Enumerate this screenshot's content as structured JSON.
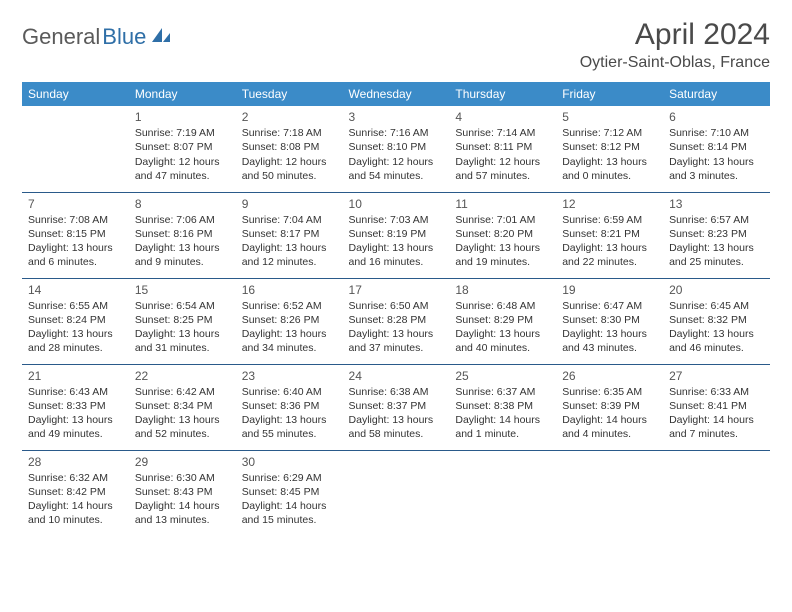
{
  "logo": {
    "text_gray": "General",
    "text_blue": "Blue"
  },
  "header": {
    "month_title": "April 2024",
    "location": "Oytier-Saint-Oblas, France"
  },
  "colors": {
    "header_bg": "#3b8bc8",
    "header_text": "#ffffff",
    "row_divider": "#2a5a8a",
    "body_text": "#333333",
    "title_text": "#4a4a4a",
    "logo_gray": "#5a5a5a",
    "logo_blue": "#2f6fa7",
    "background": "#ffffff"
  },
  "typography": {
    "month_title_fontsize": 30,
    "location_fontsize": 16,
    "weekday_fontsize": 12,
    "daynum_fontsize": 12,
    "cell_fontsize": 10.5
  },
  "weekdays": [
    "Sunday",
    "Monday",
    "Tuesday",
    "Wednesday",
    "Thursday",
    "Friday",
    "Saturday"
  ],
  "weeks": [
    [
      {
        "day": "",
        "sunrise": "",
        "sunset": "",
        "daylight": ""
      },
      {
        "day": "1",
        "sunrise": "Sunrise: 7:19 AM",
        "sunset": "Sunset: 8:07 PM",
        "daylight": "Daylight: 12 hours and 47 minutes."
      },
      {
        "day": "2",
        "sunrise": "Sunrise: 7:18 AM",
        "sunset": "Sunset: 8:08 PM",
        "daylight": "Daylight: 12 hours and 50 minutes."
      },
      {
        "day": "3",
        "sunrise": "Sunrise: 7:16 AM",
        "sunset": "Sunset: 8:10 PM",
        "daylight": "Daylight: 12 hours and 54 minutes."
      },
      {
        "day": "4",
        "sunrise": "Sunrise: 7:14 AM",
        "sunset": "Sunset: 8:11 PM",
        "daylight": "Daylight: 12 hours and 57 minutes."
      },
      {
        "day": "5",
        "sunrise": "Sunrise: 7:12 AM",
        "sunset": "Sunset: 8:12 PM",
        "daylight": "Daylight: 13 hours and 0 minutes."
      },
      {
        "day": "6",
        "sunrise": "Sunrise: 7:10 AM",
        "sunset": "Sunset: 8:14 PM",
        "daylight": "Daylight: 13 hours and 3 minutes."
      }
    ],
    [
      {
        "day": "7",
        "sunrise": "Sunrise: 7:08 AM",
        "sunset": "Sunset: 8:15 PM",
        "daylight": "Daylight: 13 hours and 6 minutes."
      },
      {
        "day": "8",
        "sunrise": "Sunrise: 7:06 AM",
        "sunset": "Sunset: 8:16 PM",
        "daylight": "Daylight: 13 hours and 9 minutes."
      },
      {
        "day": "9",
        "sunrise": "Sunrise: 7:04 AM",
        "sunset": "Sunset: 8:17 PM",
        "daylight": "Daylight: 13 hours and 12 minutes."
      },
      {
        "day": "10",
        "sunrise": "Sunrise: 7:03 AM",
        "sunset": "Sunset: 8:19 PM",
        "daylight": "Daylight: 13 hours and 16 minutes."
      },
      {
        "day": "11",
        "sunrise": "Sunrise: 7:01 AM",
        "sunset": "Sunset: 8:20 PM",
        "daylight": "Daylight: 13 hours and 19 minutes."
      },
      {
        "day": "12",
        "sunrise": "Sunrise: 6:59 AM",
        "sunset": "Sunset: 8:21 PM",
        "daylight": "Daylight: 13 hours and 22 minutes."
      },
      {
        "day": "13",
        "sunrise": "Sunrise: 6:57 AM",
        "sunset": "Sunset: 8:23 PM",
        "daylight": "Daylight: 13 hours and 25 minutes."
      }
    ],
    [
      {
        "day": "14",
        "sunrise": "Sunrise: 6:55 AM",
        "sunset": "Sunset: 8:24 PM",
        "daylight": "Daylight: 13 hours and 28 minutes."
      },
      {
        "day": "15",
        "sunrise": "Sunrise: 6:54 AM",
        "sunset": "Sunset: 8:25 PM",
        "daylight": "Daylight: 13 hours and 31 minutes."
      },
      {
        "day": "16",
        "sunrise": "Sunrise: 6:52 AM",
        "sunset": "Sunset: 8:26 PM",
        "daylight": "Daylight: 13 hours and 34 minutes."
      },
      {
        "day": "17",
        "sunrise": "Sunrise: 6:50 AM",
        "sunset": "Sunset: 8:28 PM",
        "daylight": "Daylight: 13 hours and 37 minutes."
      },
      {
        "day": "18",
        "sunrise": "Sunrise: 6:48 AM",
        "sunset": "Sunset: 8:29 PM",
        "daylight": "Daylight: 13 hours and 40 minutes."
      },
      {
        "day": "19",
        "sunrise": "Sunrise: 6:47 AM",
        "sunset": "Sunset: 8:30 PM",
        "daylight": "Daylight: 13 hours and 43 minutes."
      },
      {
        "day": "20",
        "sunrise": "Sunrise: 6:45 AM",
        "sunset": "Sunset: 8:32 PM",
        "daylight": "Daylight: 13 hours and 46 minutes."
      }
    ],
    [
      {
        "day": "21",
        "sunrise": "Sunrise: 6:43 AM",
        "sunset": "Sunset: 8:33 PM",
        "daylight": "Daylight: 13 hours and 49 minutes."
      },
      {
        "day": "22",
        "sunrise": "Sunrise: 6:42 AM",
        "sunset": "Sunset: 8:34 PM",
        "daylight": "Daylight: 13 hours and 52 minutes."
      },
      {
        "day": "23",
        "sunrise": "Sunrise: 6:40 AM",
        "sunset": "Sunset: 8:36 PM",
        "daylight": "Daylight: 13 hours and 55 minutes."
      },
      {
        "day": "24",
        "sunrise": "Sunrise: 6:38 AM",
        "sunset": "Sunset: 8:37 PM",
        "daylight": "Daylight: 13 hours and 58 minutes."
      },
      {
        "day": "25",
        "sunrise": "Sunrise: 6:37 AM",
        "sunset": "Sunset: 8:38 PM",
        "daylight": "Daylight: 14 hours and 1 minute."
      },
      {
        "day": "26",
        "sunrise": "Sunrise: 6:35 AM",
        "sunset": "Sunset: 8:39 PM",
        "daylight": "Daylight: 14 hours and 4 minutes."
      },
      {
        "day": "27",
        "sunrise": "Sunrise: 6:33 AM",
        "sunset": "Sunset: 8:41 PM",
        "daylight": "Daylight: 14 hours and 7 minutes."
      }
    ],
    [
      {
        "day": "28",
        "sunrise": "Sunrise: 6:32 AM",
        "sunset": "Sunset: 8:42 PM",
        "daylight": "Daylight: 14 hours and 10 minutes."
      },
      {
        "day": "29",
        "sunrise": "Sunrise: 6:30 AM",
        "sunset": "Sunset: 8:43 PM",
        "daylight": "Daylight: 14 hours and 13 minutes."
      },
      {
        "day": "30",
        "sunrise": "Sunrise: 6:29 AM",
        "sunset": "Sunset: 8:45 PM",
        "daylight": "Daylight: 14 hours and 15 minutes."
      },
      {
        "day": "",
        "sunrise": "",
        "sunset": "",
        "daylight": ""
      },
      {
        "day": "",
        "sunrise": "",
        "sunset": "",
        "daylight": ""
      },
      {
        "day": "",
        "sunrise": "",
        "sunset": "",
        "daylight": ""
      },
      {
        "day": "",
        "sunrise": "",
        "sunset": "",
        "daylight": ""
      }
    ]
  ]
}
